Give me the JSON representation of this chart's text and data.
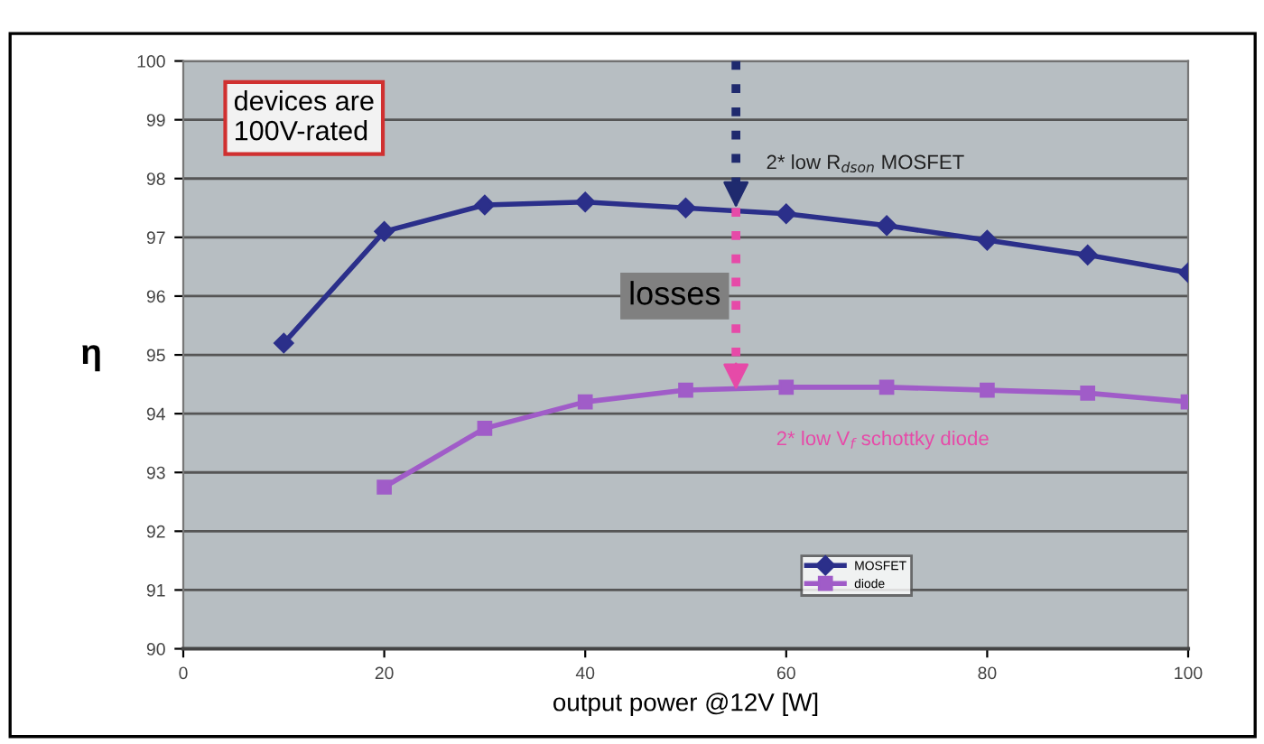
{
  "chart_data": {
    "type": "line",
    "xlabel": "output power @12V [W]",
    "ylabel": "η",
    "xlim": [
      0,
      100
    ],
    "xticks": [
      0,
      20,
      40,
      60,
      80,
      100
    ],
    "ylim": [
      90,
      100
    ],
    "yticks": [
      90,
      91,
      92,
      93,
      94,
      95,
      96,
      97,
      98,
      99,
      100
    ],
    "grid": "y",
    "legend": "bottom",
    "line_style": "solid",
    "series": [
      {
        "name": "MOSFET",
        "color": "#2b2f8a",
        "marker": "diamond",
        "x": [
          10,
          20,
          30,
          40,
          50,
          60,
          70,
          80,
          90,
          100
        ],
        "values": [
          95.2,
          97.1,
          97.55,
          97.6,
          97.5,
          97.4,
          97.2,
          96.95,
          96.7,
          96.4
        ]
      },
      {
        "name": "diode",
        "color": "#a05cc8",
        "marker": "square",
        "x": [
          20,
          30,
          40,
          50,
          60,
          70,
          80,
          90,
          100
        ],
        "values": [
          92.75,
          93.75,
          94.2,
          94.4,
          94.45,
          94.45,
          94.4,
          94.35,
          94.2
        ]
      }
    ],
    "annotations": [
      "devices are\n100V-rated",
      {
        "text": "2* low R$_{dson}$ MOSFET",
        "x": 55,
        "y": 97.5
      },
      "losses",
      {
        "text": "2* low V$_{f}$ schottky diode",
        "x": 55,
        "y": 94.4
      }
    ]
  }
}
